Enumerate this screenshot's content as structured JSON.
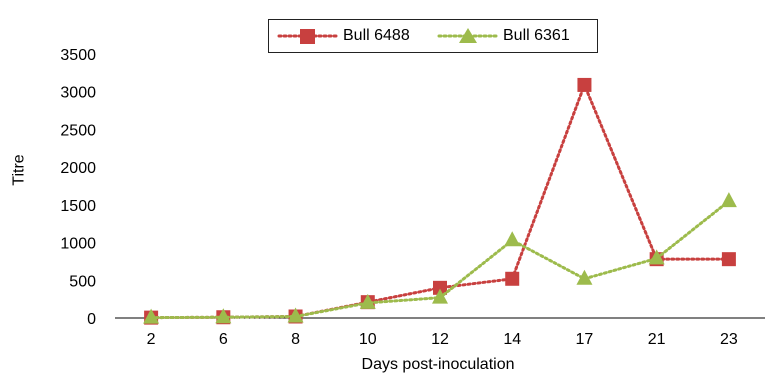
{
  "chart_data": {
    "type": "line",
    "title": "",
    "xlabel": "Days post-inoculation",
    "ylabel": "Titre",
    "categories": [
      "2",
      "6",
      "8",
      "10",
      "12",
      "14",
      "17",
      "21",
      "23"
    ],
    "ylim": [
      0,
      3500
    ],
    "yticks": [
      "0",
      "500",
      "1000",
      "1500",
      "2000",
      "2500",
      "3000",
      "3500"
    ],
    "legend_position": "top",
    "grid": false,
    "series": [
      {
        "name": "Bull 6488",
        "color": "#c8403f",
        "marker": "square",
        "line_style": "dotted",
        "values": [
          5,
          10,
          20,
          210,
          400,
          520,
          3090,
          780,
          780
        ]
      },
      {
        "name": "Bull 6361",
        "color": "#9dbb4c",
        "marker": "triangle",
        "line_style": "dotted",
        "values": [
          5,
          10,
          20,
          200,
          270,
          1030,
          520,
          790,
          1550
        ]
      }
    ]
  }
}
